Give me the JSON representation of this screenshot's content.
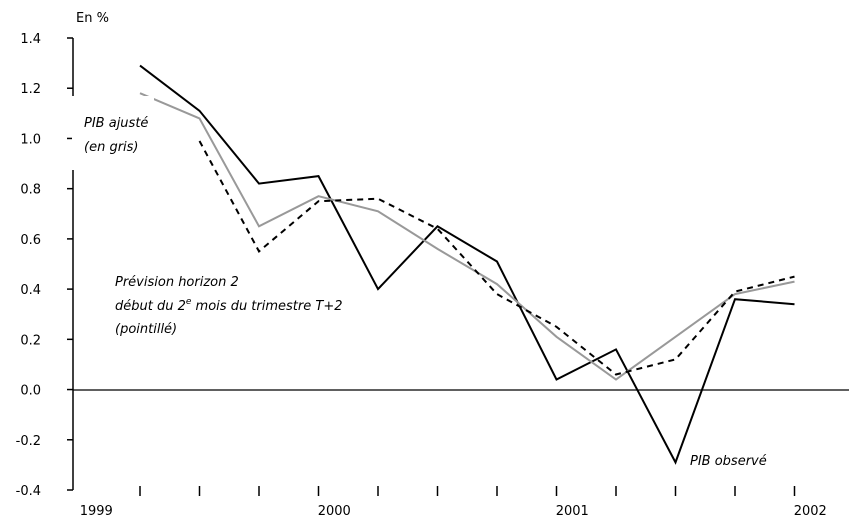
{
  "chart_data": {
    "type": "line",
    "unit_label": "En %",
    "x": [
      "1999 Q2",
      "1999 Q3",
      "1999 Q4",
      "2000 Q1",
      "2000 Q2",
      "2000 Q3",
      "2000 Q4",
      "2001 Q1",
      "2001 Q2",
      "2001 Q3",
      "2001 Q4",
      "2002 Q1"
    ],
    "ylim": [
      -0.4,
      1.4
    ],
    "yticks": [
      "1.4",
      "1.2",
      "1.0",
      "0.8",
      "0.6",
      "0.4",
      "0.2",
      "0.0",
      "-0.2",
      "-0.4"
    ],
    "ytick_values": [
      1.4,
      1.2,
      1.0,
      0.8,
      0.6,
      0.4,
      0.2,
      0.0,
      -0.2,
      -0.4
    ],
    "year_labels": [
      {
        "text": "1999",
        "before_index": 0
      },
      {
        "text": "2000",
        "before_index": 4
      },
      {
        "text": "2001",
        "before_index": 8
      },
      {
        "text": "2002",
        "before_index": 12
      }
    ],
    "series": [
      {
        "key": "observe",
        "color": "#000000",
        "dash": false,
        "values": [
          1.29,
          1.11,
          0.82,
          0.85,
          0.4,
          0.65,
          0.51,
          0.04,
          0.16,
          -0.29,
          0.36,
          0.34
        ]
      },
      {
        "key": "ajuste",
        "color": "#999999",
        "dash": false,
        "values": [
          1.18,
          1.08,
          0.65,
          0.77,
          0.71,
          0.56,
          0.42,
          0.21,
          0.04,
          0.21,
          0.38,
          0.43
        ]
      },
      {
        "key": "prevision",
        "color": "#000000",
        "dash": true,
        "values": [
          null,
          0.99,
          0.55,
          0.75,
          0.76,
          0.64,
          0.38,
          0.25,
          0.06,
          0.12,
          0.39,
          0.45
        ]
      }
    ],
    "annotations": {
      "ajuste_line1": "PIB ajusté",
      "ajuste_line2": "(en gris)",
      "prevision_line1": "Prévision horizon 2",
      "prevision_line2_pre": "début du 2",
      "prevision_line2_sup": "e",
      "prevision_line2_post": " mois du trimestre T+2",
      "prevision_line3": "(pointillé)",
      "observe": "PIB observé"
    }
  }
}
